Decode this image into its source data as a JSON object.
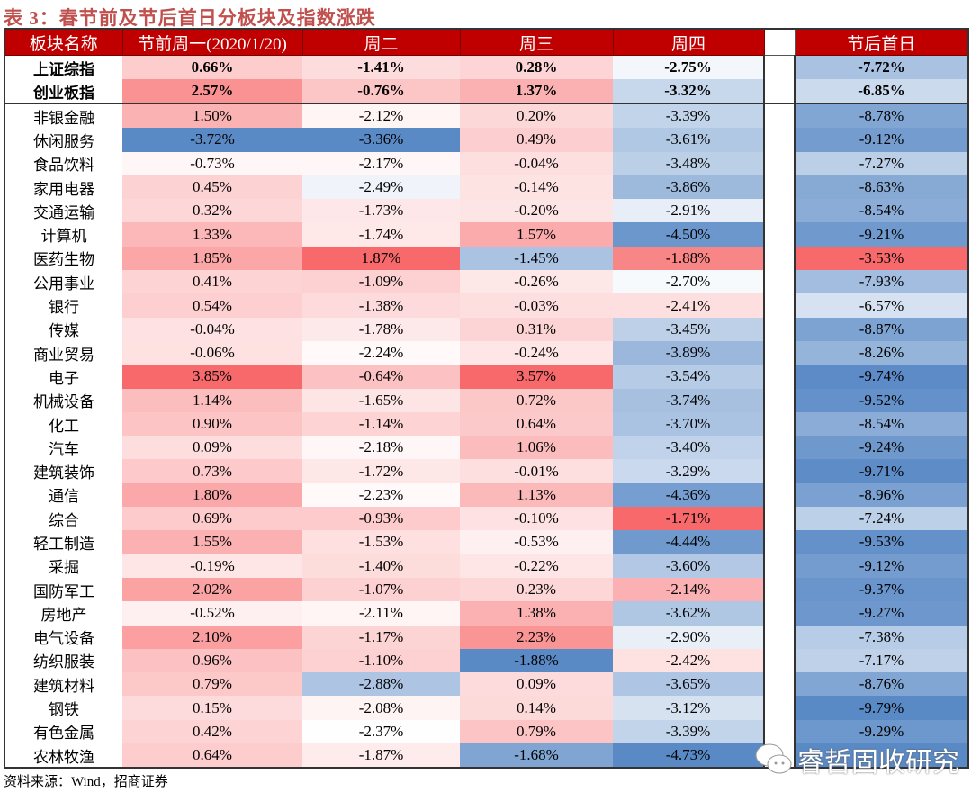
{
  "title": "表 3：春节前及节后首日分板块及指数涨跌",
  "headers": [
    "板块名称",
    "节前周一(2020/1/20)",
    "周二",
    "周三",
    "周四",
    "",
    "节后首日"
  ],
  "colors": {
    "header_bg": "#c00000",
    "title": "#c0504d",
    "pos_max": "#f8696b",
    "neg_max": "#5a8ac6",
    "mid": "#ffffff"
  },
  "index_rows": [
    {
      "name": "上证综指",
      "values": [
        "0.66%",
        "-1.41%",
        "0.28%",
        "-2.75%",
        "-7.72%"
      ]
    },
    {
      "name": "创业板指",
      "values": [
        "2.57%",
        "-0.76%",
        "1.37%",
        "-3.32%",
        "-6.85%"
      ]
    }
  ],
  "rows": [
    {
      "name": "非银金融",
      "values": [
        "1.50%",
        "-2.12%",
        "0.20%",
        "-3.39%",
        "-8.78%"
      ]
    },
    {
      "name": "休闲服务",
      "values": [
        "-3.72%",
        "-3.36%",
        "0.49%",
        "-3.61%",
        "-9.12%"
      ]
    },
    {
      "name": "食品饮料",
      "values": [
        "-0.73%",
        "-2.17%",
        "-0.04%",
        "-3.48%",
        "-7.27%"
      ]
    },
    {
      "name": "家用电器",
      "values": [
        "0.45%",
        "-2.49%",
        "-0.14%",
        "-3.86%",
        "-8.63%"
      ]
    },
    {
      "name": "交通运输",
      "values": [
        "0.32%",
        "-1.73%",
        "-0.20%",
        "-2.91%",
        "-8.54%"
      ]
    },
    {
      "name": "计算机",
      "values": [
        "1.33%",
        "-1.74%",
        "1.57%",
        "-4.50%",
        "-9.21%"
      ]
    },
    {
      "name": "医药生物",
      "values": [
        "1.85%",
        "1.87%",
        "-1.45%",
        "-1.88%",
        "-3.53%"
      ]
    },
    {
      "name": "公用事业",
      "values": [
        "0.41%",
        "-1.09%",
        "-0.26%",
        "-2.70%",
        "-7.93%"
      ]
    },
    {
      "name": "银行",
      "values": [
        "0.54%",
        "-1.38%",
        "-0.03%",
        "-2.41%",
        "-6.57%"
      ]
    },
    {
      "name": "传媒",
      "values": [
        "-0.04%",
        "-1.78%",
        "0.31%",
        "-3.45%",
        "-8.87%"
      ]
    },
    {
      "name": "商业贸易",
      "values": [
        "-0.06%",
        "-2.24%",
        "-0.24%",
        "-3.89%",
        "-8.26%"
      ]
    },
    {
      "name": "电子",
      "values": [
        "3.85%",
        "-0.64%",
        "3.57%",
        "-3.54%",
        "-9.74%"
      ]
    },
    {
      "name": "机械设备",
      "values": [
        "1.14%",
        "-1.65%",
        "0.72%",
        "-3.74%",
        "-9.52%"
      ]
    },
    {
      "name": "化工",
      "values": [
        "0.90%",
        "-1.14%",
        "0.64%",
        "-3.70%",
        "-8.54%"
      ]
    },
    {
      "name": "汽车",
      "values": [
        "0.09%",
        "-2.18%",
        "1.06%",
        "-3.40%",
        "-9.24%"
      ]
    },
    {
      "name": "建筑装饰",
      "values": [
        "0.73%",
        "-1.72%",
        "-0.01%",
        "-3.29%",
        "-9.71%"
      ]
    },
    {
      "name": "通信",
      "values": [
        "1.80%",
        "-2.23%",
        "1.13%",
        "-4.36%",
        "-8.96%"
      ]
    },
    {
      "name": "综合",
      "values": [
        "0.69%",
        "-0.93%",
        "-0.10%",
        "-1.71%",
        "-7.24%"
      ]
    },
    {
      "name": "轻工制造",
      "values": [
        "1.55%",
        "-1.53%",
        "-0.53%",
        "-4.44%",
        "-9.53%"
      ]
    },
    {
      "name": "采掘",
      "values": [
        "-0.19%",
        "-1.40%",
        "-0.22%",
        "-3.60%",
        "-9.12%"
      ]
    },
    {
      "name": "国防军工",
      "values": [
        "2.02%",
        "-1.07%",
        "0.23%",
        "-2.14%",
        "-9.37%"
      ]
    },
    {
      "name": "房地产",
      "values": [
        "-0.52%",
        "-2.11%",
        "1.38%",
        "-3.62%",
        "-9.27%"
      ]
    },
    {
      "name": "电气设备",
      "values": [
        "2.10%",
        "-1.17%",
        "2.23%",
        "-2.90%",
        "-7.38%"
      ]
    },
    {
      "name": "纺织服装",
      "values": [
        "0.96%",
        "-1.10%",
        "-1.88%",
        "-2.42%",
        "-7.17%"
      ]
    },
    {
      "name": "建筑材料",
      "values": [
        "0.79%",
        "-2.88%",
        "0.09%",
        "-3.65%",
        "-8.76%"
      ]
    },
    {
      "name": "钢铁",
      "values": [
        "0.15%",
        "-2.08%",
        "0.14%",
        "-3.12%",
        "-9.79%"
      ]
    },
    {
      "name": "有色金属",
      "values": [
        "0.42%",
        "-2.37%",
        "0.79%",
        "-3.39%",
        "-9.29%"
      ]
    },
    {
      "name": "农林牧渔",
      "values": [
        "0.64%",
        "-1.87%",
        "-1.68%",
        "-4.73%",
        ""
      ]
    }
  ],
  "source": "资料来源：Wind，招商证券",
  "watermark": "睿哲固收研究",
  "watermark_icon": "wechat-icon"
}
